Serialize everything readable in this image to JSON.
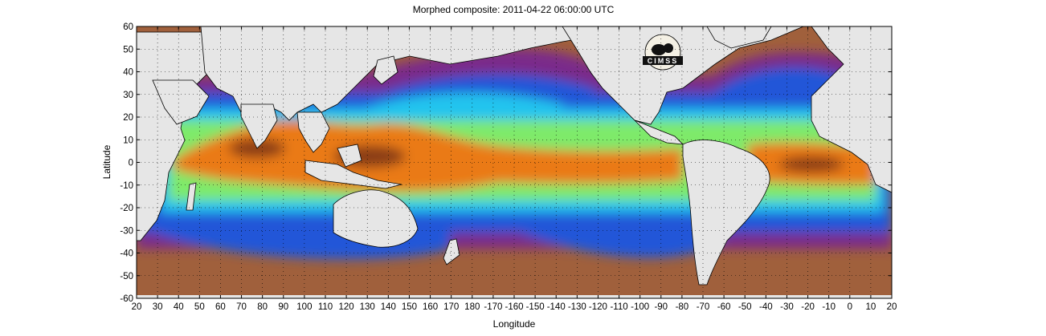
{
  "figure": {
    "title": "Morphed composite: 2011-04-22 06:00:00 UTC",
    "xlabel": "Longitude",
    "ylabel": "Latitude",
    "logo_text": "CIMSS"
  },
  "axes": {
    "x_tick_labels": [
      "20",
      "30",
      "40",
      "50",
      "60",
      "70",
      "80",
      "90",
      "100",
      "110",
      "120",
      "130",
      "140",
      "150",
      "160",
      "170",
      "180",
      "-170",
      "-160",
      "-150",
      "-140",
      "-130",
      "-120",
      "-110",
      "-100",
      "-90",
      "-80",
      "-70",
      "-60",
      "-50",
      "-40",
      "-30",
      "-20",
      "-10",
      "0",
      "10",
      "20"
    ],
    "y_tick_labels": [
      "60",
      "50",
      "40",
      "30",
      "20",
      "10",
      "0",
      "-10",
      "-20",
      "-30",
      "-40",
      "-50",
      "-60"
    ],
    "lon_range": [
      20,
      380
    ],
    "lat_range": [
      -60,
      60
    ]
  },
  "colors": {
    "land": "#e6e6e6",
    "dry": "#a0603c",
    "purple": "#7a2a8a",
    "blue": "#2255dd",
    "cyan": "#22c8f0",
    "green": "#88ee66",
    "orange": "#e97c10",
    "brown_peak": "#8a3a10"
  }
}
